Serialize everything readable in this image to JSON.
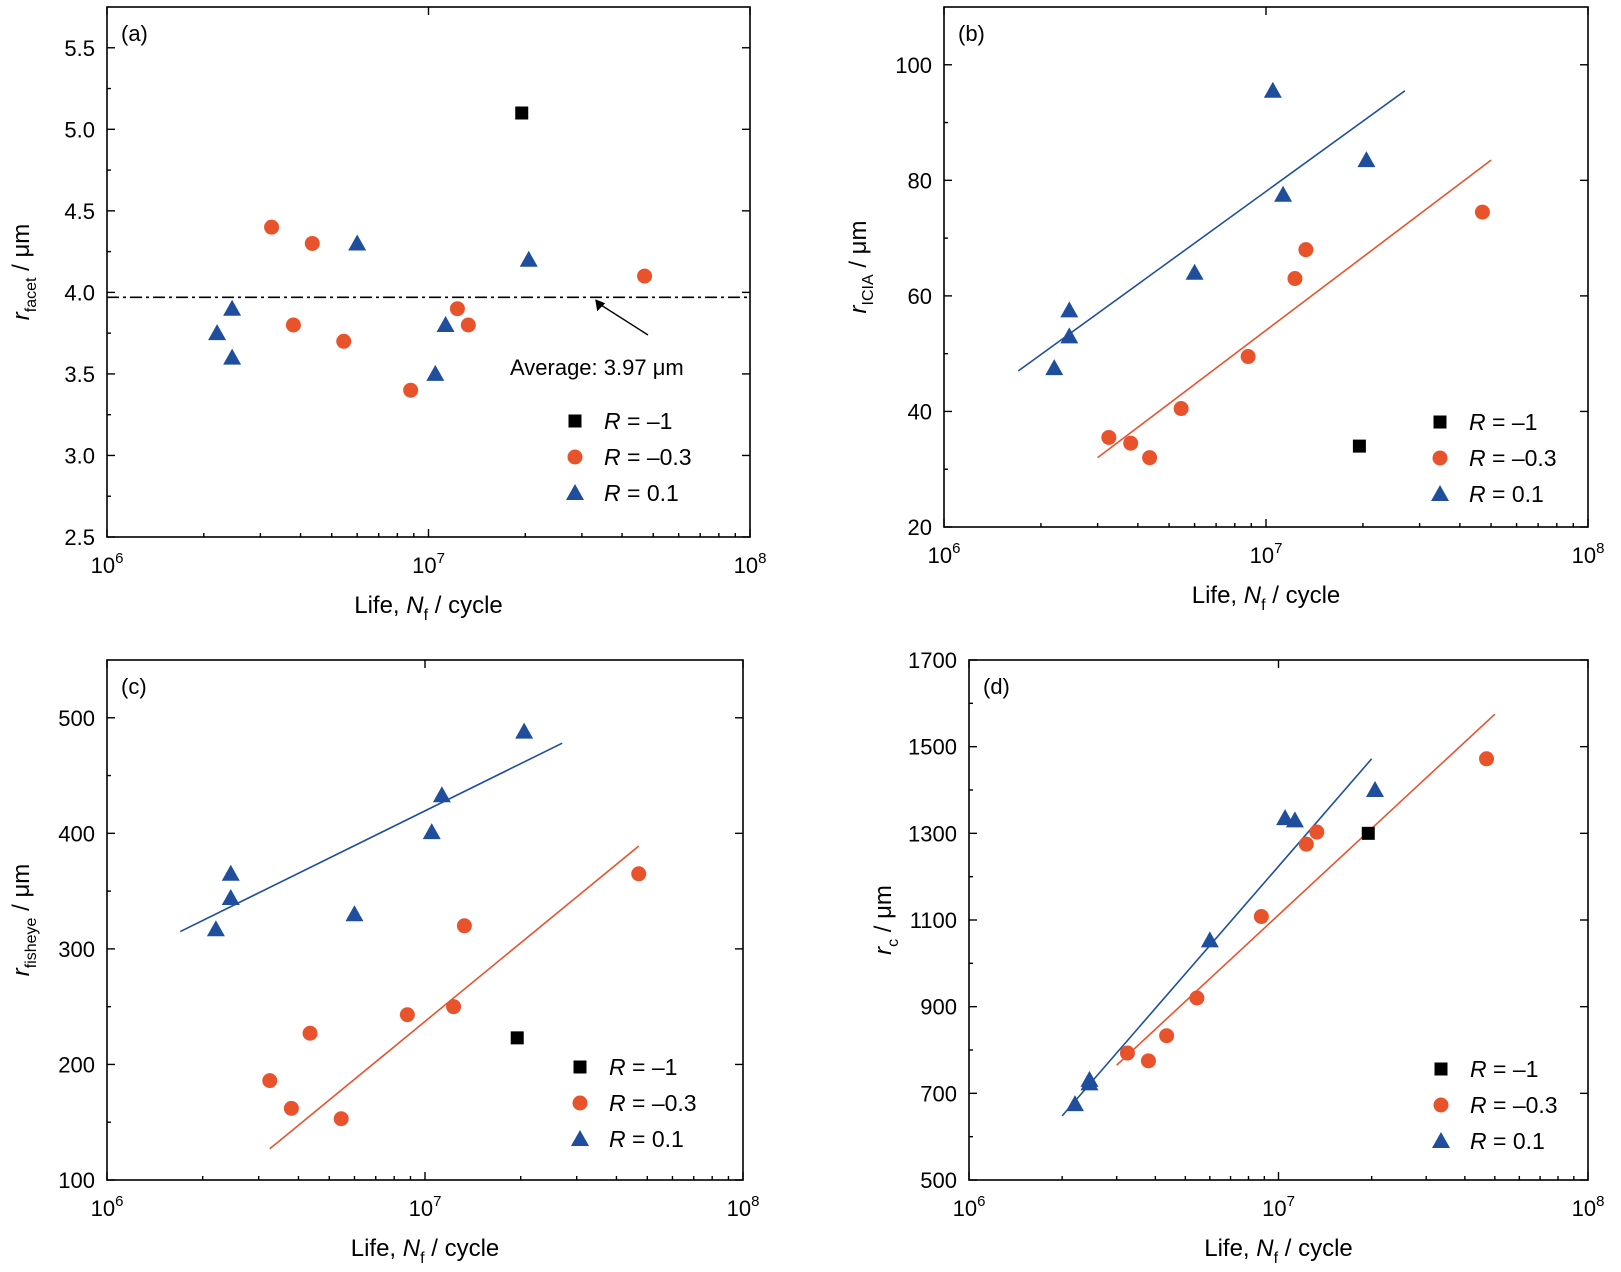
{
  "chart_data": [
    {
      "type": "scatter",
      "panel": "(a)",
      "xlabel": "Life, N_f / cycle",
      "ylabel": "r_facet / μm",
      "xscale": "log",
      "xlim": [
        1000000,
        100000000
      ],
      "xticks": [
        "10^6",
        "10^7",
        "10^8"
      ],
      "ylim": [
        2.5,
        5.75
      ],
      "yticks": [
        "2.5",
        "3.0",
        "3.5",
        "4.0",
        "4.5",
        "5.0",
        "5.5"
      ],
      "legend_position": "bottom-right",
      "series": [
        {
          "name": "R = −1",
          "color": "#000000",
          "marker": "square",
          "x": [
            19500000
          ],
          "y": [
            5.1
          ]
        },
        {
          "name": "R = −0.3",
          "color": "#e8532c",
          "marker": "circle",
          "x": [
            3250000,
            3800000,
            4350000,
            5450000,
            8800000,
            12300000,
            13300000,
            47000000
          ],
          "y": [
            4.4,
            3.8,
            4.3,
            3.7,
            3.4,
            3.9,
            3.8,
            4.1
          ]
        },
        {
          "name": "R = 0.1",
          "color": "#1f4f9c",
          "marker": "triangle",
          "x": [
            2200000,
            2450000,
            2450000,
            6000000,
            10500000,
            11300000,
            20500000
          ],
          "y": [
            3.75,
            3.6,
            3.9,
            4.3,
            3.5,
            3.8,
            4.2
          ]
        }
      ],
      "annotations": [
        {
          "type": "hline",
          "y": 3.97,
          "style": "dash-dot"
        },
        {
          "type": "text",
          "text": "Average: 3.97 μm"
        }
      ],
      "fits": []
    },
    {
      "type": "scatter",
      "panel": "(b)",
      "xlabel": "Life, N_f / cycle",
      "ylabel": "r_ICIA / μm",
      "xscale": "log",
      "xlim": [
        1000000,
        100000000
      ],
      "xticks": [
        "10^6",
        "10^7",
        "10^8"
      ],
      "ylim": [
        20,
        110
      ],
      "yticks": [
        "20",
        "40",
        "60",
        "80",
        "100"
      ],
      "legend_position": "bottom-right",
      "series": [
        {
          "name": "R = −1",
          "color": "#000000",
          "marker": "square",
          "x": [
            19500000
          ],
          "y": [
            34
          ]
        },
        {
          "name": "R = −0.3",
          "color": "#e8532c",
          "marker": "circle",
          "x": [
            3250000,
            3800000,
            4350000,
            5450000,
            8800000,
            12300000,
            13300000,
            47000000
          ],
          "y": [
            35.5,
            34.5,
            32,
            40.5,
            49.5,
            63,
            68,
            74.5
          ]
        },
        {
          "name": "R = 0.1",
          "color": "#1f4f9c",
          "marker": "triangle",
          "x": [
            2200000,
            2450000,
            2450000,
            6000000,
            10500000,
            11300000,
            20500000
          ],
          "y": [
            47.5,
            53,
            57.5,
            64,
            95.5,
            77.5,
            83.5
          ]
        }
      ],
      "fits": [
        {
          "series": "R = 0.1",
          "color": "#1f4f9c",
          "x": [
            1700000,
            27000000
          ],
          "y": [
            47,
            95.5
          ]
        },
        {
          "series": "R = −0.3",
          "color": "#e8532c",
          "x": [
            3000000,
            50000000
          ],
          "y": [
            32,
            83.5
          ]
        }
      ]
    },
    {
      "type": "scatter",
      "panel": "(c)",
      "xlabel": "Life, N_f / cycle",
      "ylabel": "r_fisheye / μm",
      "xscale": "log",
      "xlim": [
        1000000,
        100000000
      ],
      "xticks": [
        "10^6",
        "10^7",
        "10^8"
      ],
      "ylim": [
        100,
        550
      ],
      "yticks": [
        "100",
        "200",
        "300",
        "400",
        "500"
      ],
      "legend_position": "bottom-right",
      "series": [
        {
          "name": "R = −1",
          "color": "#000000",
          "marker": "square",
          "x": [
            19500000
          ],
          "y": [
            223
          ]
        },
        {
          "name": "R = −0.3",
          "color": "#e8532c",
          "marker": "circle",
          "x": [
            3250000,
            3800000,
            4350000,
            5450000,
            8800000,
            12300000,
            13300000,
            47000000
          ],
          "y": [
            186,
            162,
            227,
            153,
            243,
            250,
            320,
            365
          ]
        },
        {
          "name": "R = 0.1",
          "color": "#1f4f9c",
          "marker": "triangle",
          "x": [
            2200000,
            2450000,
            2450000,
            6000000,
            10500000,
            11300000,
            20500000
          ],
          "y": [
            317,
            344,
            365,
            330,
            401,
            433,
            488
          ]
        }
      ],
      "fits": [
        {
          "series": "R = 0.1",
          "color": "#1f4f9c",
          "x": [
            1700000,
            27000000
          ],
          "y": [
            315,
            478
          ]
        },
        {
          "series": "R = −0.3",
          "color": "#e8532c",
          "x": [
            3250000,
            47000000
          ],
          "y": [
            127,
            389
          ]
        }
      ]
    },
    {
      "type": "scatter",
      "panel": "(d)",
      "xlabel": "Life, N_f / cycle",
      "ylabel": "r_c / μm",
      "xscale": "log",
      "xlim": [
        1000000,
        100000000
      ],
      "xticks": [
        "10^6",
        "10^7",
        "10^8"
      ],
      "ylim": [
        500,
        1700
      ],
      "yticks": [
        "500",
        "700",
        "900",
        "1100",
        "1300",
        "1500",
        "1700"
      ],
      "legend_position": "bottom-right",
      "series": [
        {
          "name": "R = −1",
          "color": "#000000",
          "marker": "square",
          "x": [
            19500000
          ],
          "y": [
            1300
          ]
        },
        {
          "name": "R = −0.3",
          "color": "#e8532c",
          "marker": "circle",
          "x": [
            3250000,
            3800000,
            4350000,
            5450000,
            8800000,
            12300000,
            13300000,
            47000000
          ],
          "y": [
            793,
            775,
            833,
            920,
            1108,
            1275,
            1303,
            1472
          ]
        },
        {
          "name": "R = 0.1",
          "color": "#1f4f9c",
          "marker": "triangle",
          "x": [
            2200000,
            2450000,
            2450000,
            6000000,
            10500000,
            11300000,
            20500000
          ],
          "y": [
            675,
            723,
            731,
            1053,
            1335,
            1330,
            1400
          ]
        }
      ],
      "fits": [
        {
          "series": "R = 0.1",
          "color": "#1f4f9c",
          "x": [
            2000000,
            20000000
          ],
          "y": [
            648,
            1472
          ]
        },
        {
          "series": "R = −0.3",
          "color": "#e8532c",
          "x": [
            3000000,
            50000000
          ],
          "y": [
            765,
            1575
          ]
        }
      ]
    }
  ],
  "common": {
    "x_prefix": "Life, ",
    "x_var": "N",
    "x_sub": "f",
    "x_suffix": " / cycle",
    "y_unit": " / μm",
    "tick_base": "10",
    "tick_exps": [
      "6",
      "7",
      "8"
    ],
    "legend": [
      {
        "var": "R",
        "rest": " = –1"
      },
      {
        "var": "R",
        "rest": " = –0.3"
      },
      {
        "var": "R",
        "rest": " = 0.1"
      }
    ],
    "ylabel_subs": [
      "facet",
      "ICIA",
      "fisheye",
      "c"
    ],
    "panel_tags": [
      "(a)",
      "(b)",
      "(c)",
      "(d)"
    ],
    "average_note": "Average: 3.97 μm"
  }
}
